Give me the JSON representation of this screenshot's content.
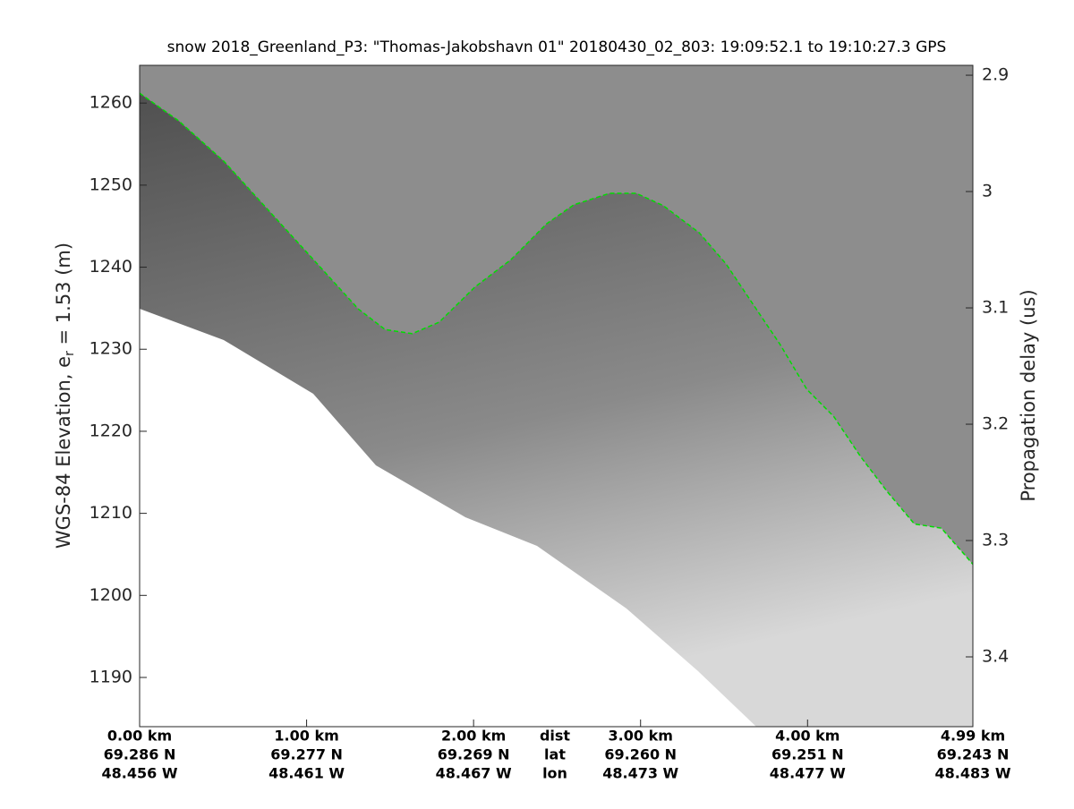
{
  "chart_data": {
    "type": "echogram",
    "title": "snow 2018_Greenland_P3: \"Thomas-Jakobshavn 01\"  20180430_02_803: 19:09:52.1 to 19:10:27.3 GPS",
    "ylabel": {
      "prefix": "WGS-84 Elevation, e",
      "subscript": "r",
      "suffix": " = 1.53 (m)"
    },
    "y2label": "Propagation delay (us)",
    "xlim": [
      0,
      4.99
    ],
    "ylim": [
      1184.0,
      1264.6
    ],
    "y2lim": [
      2.8915,
      3.46
    ],
    "yticks": [
      1190,
      1200,
      1210,
      1220,
      1230,
      1240,
      1250,
      1260
    ],
    "y2ticks": [
      2.9,
      3,
      3.1,
      3.2,
      3.3,
      3.4
    ],
    "xticks": [
      {
        "value": 0,
        "label": "0.00 km"
      },
      {
        "value": 1,
        "label": "1.00 km"
      },
      {
        "value": 2,
        "label": "2.00 km"
      },
      {
        "value": 3,
        "label": "3.00 km"
      },
      {
        "value": 4,
        "label": "4.00 km"
      },
      {
        "value": 4.99,
        "label": "4.99 km"
      }
    ],
    "lat_labels": [
      "69.286 N",
      "69.277 N",
      "69.269 N",
      "69.260 N",
      "69.251 N",
      "69.243 N"
    ],
    "lon_labels": [
      "48.456 W",
      "48.461 W",
      "48.467 W",
      "48.473 W",
      "48.477 W",
      "48.483 W"
    ],
    "row_labels": [
      "dist",
      "lat",
      "lon"
    ],
    "surface": {
      "color": "#00dd00",
      "x": [
        0,
        0.236,
        0.505,
        0.773,
        1.042,
        1.31,
        1.47,
        1.633,
        1.794,
        2.009,
        2.223,
        2.438,
        2.6,
        2.814,
        2.975,
        3.136,
        3.351,
        3.512,
        3.673,
        3.835,
        3.996,
        4.157,
        4.318,
        4.479,
        4.64,
        4.801,
        4.99
      ],
      "y": [
        1261.2,
        1257.8,
        1252.9,
        1246.9,
        1240.9,
        1234.9,
        1232.4,
        1231.9,
        1233.3,
        1237.6,
        1240.9,
        1245.3,
        1247.6,
        1249.0,
        1249.0,
        1247.5,
        1244.2,
        1240.4,
        1235.5,
        1230.6,
        1225.1,
        1221.8,
        1216.9,
        1212.6,
        1208.7,
        1208.2,
        1203.8
      ]
    }
  }
}
